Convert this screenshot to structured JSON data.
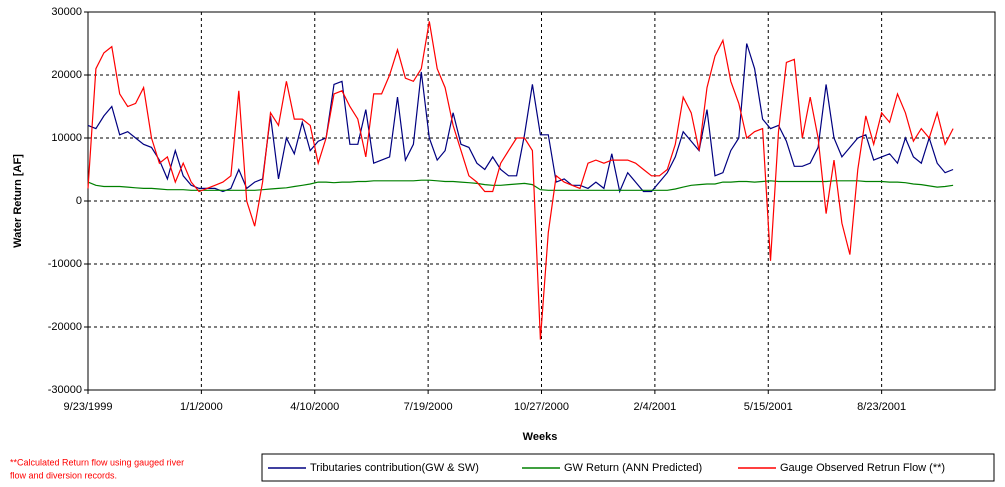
{
  "chart_data": {
    "type": "line",
    "y_label": "Water Return [AF]",
    "x_label": "Weeks",
    "annotation": [
      "**Calculated Return flow using gauged river",
      "flow and diversion records."
    ],
    "grid": true,
    "legend": "bottom",
    "xlim": [
      "1999-09-23",
      "2001-12-01"
    ],
    "xticks": [
      {
        "value": "1999-09-23",
        "label": "9/23/1999"
      },
      {
        "value": "2000-01-01",
        "label": "1/1/2000"
      },
      {
        "value": "2000-04-10",
        "label": "4/10/2000"
      },
      {
        "value": "2000-07-19",
        "label": "7/19/2000"
      },
      {
        "value": "2000-10-27",
        "label": "10/27/2000"
      },
      {
        "value": "2001-02-04",
        "label": "2/4/2001"
      },
      {
        "value": "2001-05-15",
        "label": "5/15/2001"
      },
      {
        "value": "2001-08-23",
        "label": "8/23/2001"
      }
    ],
    "ylim": [
      -30000,
      30000
    ],
    "yticks": [
      -30000,
      -20000,
      -10000,
      0,
      10000,
      20000,
      30000
    ],
    "x": [
      "1999-09-23",
      "1999-09-30",
      "1999-10-07",
      "1999-10-14",
      "1999-10-21",
      "1999-10-28",
      "1999-11-04",
      "1999-11-11",
      "1999-11-18",
      "1999-11-25",
      "1999-12-02",
      "1999-12-09",
      "1999-12-16",
      "1999-12-23",
      "1999-12-30",
      "2000-01-06",
      "2000-01-13",
      "2000-01-20",
      "2000-01-27",
      "2000-02-03",
      "2000-02-10",
      "2000-02-17",
      "2000-02-24",
      "2000-03-02",
      "2000-03-09",
      "2000-03-16",
      "2000-03-23",
      "2000-03-30",
      "2000-04-06",
      "2000-04-13",
      "2000-04-20",
      "2000-04-27",
      "2000-05-04",
      "2000-05-11",
      "2000-05-18",
      "2000-05-25",
      "2000-06-01",
      "2000-06-08",
      "2000-06-15",
      "2000-06-22",
      "2000-06-29",
      "2000-07-06",
      "2000-07-13",
      "2000-07-20",
      "2000-07-27",
      "2000-08-03",
      "2000-08-10",
      "2000-08-17",
      "2000-08-24",
      "2000-08-31",
      "2000-09-07",
      "2000-09-14",
      "2000-09-21",
      "2000-09-28",
      "2000-10-05",
      "2000-10-12",
      "2000-10-19",
      "2000-10-26",
      "2000-11-02",
      "2000-11-09",
      "2000-11-16",
      "2000-11-23",
      "2000-11-30",
      "2000-12-07",
      "2000-12-14",
      "2000-12-21",
      "2000-12-28",
      "2001-01-04",
      "2001-01-11",
      "2001-01-18",
      "2001-01-25",
      "2001-02-01",
      "2001-02-08",
      "2001-02-15",
      "2001-02-22",
      "2001-03-01",
      "2001-03-08",
      "2001-03-15",
      "2001-03-22",
      "2001-03-29",
      "2001-04-05",
      "2001-04-12",
      "2001-04-19",
      "2001-04-26",
      "2001-05-03",
      "2001-05-10",
      "2001-05-17",
      "2001-05-24",
      "2001-05-31",
      "2001-06-07",
      "2001-06-14",
      "2001-06-21",
      "2001-06-28",
      "2001-07-05",
      "2001-07-12",
      "2001-07-19",
      "2001-07-26",
      "2001-08-02",
      "2001-08-09",
      "2001-08-16",
      "2001-08-23",
      "2001-08-30",
      "2001-09-06",
      "2001-09-13",
      "2001-09-20",
      "2001-09-27",
      "2001-10-04",
      "2001-10-11",
      "2001-10-18",
      "2001-10-25"
    ],
    "series": [
      {
        "name": "Tributaries contribution(GW & SW)",
        "color": "#000080",
        "values": [
          12000,
          11500,
          13500,
          15000,
          10500,
          11000,
          10000,
          9000,
          8500,
          6500,
          3500,
          8000,
          4000,
          2500,
          2000,
          2000,
          2000,
          1500,
          2000,
          5000,
          2000,
          3000,
          3500,
          13500,
          3500,
          10000,
          7500,
          12500,
          8000,
          9500,
          10000,
          18500,
          19000,
          9000,
          9000,
          14500,
          6000,
          6500,
          7000,
          16500,
          6500,
          9000,
          20500,
          10000,
          6500,
          8000,
          14000,
          9000,
          8500,
          6000,
          5000,
          7000,
          5000,
          4000,
          4000,
          10500,
          18500,
          10500,
          10500,
          3000,
          3500,
          2500,
          2500,
          2000,
          3000,
          2000,
          7500,
          1500,
          4500,
          3000,
          1500,
          1500,
          3000,
          4500,
          7000,
          11000,
          9500,
          8000,
          14500,
          4000,
          4500,
          8000,
          10000,
          25000,
          21000,
          13000,
          11500,
          12000,
          9500,
          5500,
          5500,
          6000,
          8500,
          18500,
          10000,
          7000,
          8500,
          10000,
          10500,
          6500,
          7000,
          7500,
          6000,
          10000,
          7000,
          6000,
          10000,
          6000,
          4500,
          5000
        ]
      },
      {
        "name": "GW Return (ANN Predicted)",
        "color": "#008000",
        "values": [
          3000,
          2500,
          2300,
          2300,
          2300,
          2200,
          2100,
          2000,
          2000,
          1900,
          1800,
          1800,
          1800,
          1700,
          1700,
          1700,
          1700,
          1700,
          1700,
          1700,
          1700,
          1700,
          1800,
          1900,
          2000,
          2100,
          2300,
          2500,
          2700,
          3000,
          3000,
          2900,
          3000,
          3000,
          3100,
          3100,
          3200,
          3200,
          3200,
          3200,
          3200,
          3200,
          3300,
          3300,
          3200,
          3100,
          3100,
          3000,
          2900,
          2800,
          2600,
          2500,
          2500,
          2600,
          2700,
          2800,
          2600,
          1800,
          1700,
          1700,
          1700,
          1700,
          1700,
          1700,
          1700,
          1700,
          1700,
          1700,
          1700,
          1700,
          1700,
          1700,
          1700,
          1700,
          1900,
          2200,
          2500,
          2600,
          2700,
          2700,
          3000,
          3000,
          3100,
          3100,
          3000,
          3100,
          3200,
          3100,
          3100,
          3100,
          3100,
          3100,
          3100,
          3100,
          3200,
          3200,
          3200,
          3200,
          3100,
          3100,
          3100,
          3000,
          3000,
          2900,
          2700,
          2600,
          2400,
          2200,
          2300,
          2500
        ]
      },
      {
        "name": "Gauge Observed Retrun Flow (**)",
        "color": "#ff0000",
        "values": [
          2000,
          21000,
          23500,
          24500,
          17000,
          15000,
          15500,
          18000,
          10000,
          6000,
          7000,
          3000,
          6000,
          3000,
          1500,
          2000,
          2500,
          3000,
          4000,
          17500,
          0,
          -4000,
          3000,
          14000,
          12000,
          19000,
          13000,
          13000,
          12000,
          6000,
          10000,
          17000,
          17500,
          15000,
          13000,
          7000,
          17000,
          17000,
          20000,
          24000,
          19500,
          19000,
          21000,
          28500,
          21000,
          18000,
          12000,
          8000,
          4000,
          3000,
          1500,
          1500,
          6000,
          8000,
          10000,
          10000,
          8000,
          -22000,
          -5000,
          4000,
          3000,
          2500,
          2000,
          6000,
          6500,
          6000,
          6500,
          6500,
          6500,
          6000,
          5000,
          4000,
          4000,
          5000,
          9000,
          16500,
          14000,
          8000,
          18000,
          23000,
          25500,
          19000,
          15500,
          10000,
          11000,
          11500,
          -9500,
          11000,
          22000,
          22500,
          10000,
          16500,
          10000,
          -2000,
          6500,
          -3500,
          -8500,
          5000,
          13500,
          9000,
          14000,
          12500,
          17000,
          14000,
          9500,
          11500,
          10000,
          14000,
          9000,
          11500
        ]
      }
    ]
  }
}
